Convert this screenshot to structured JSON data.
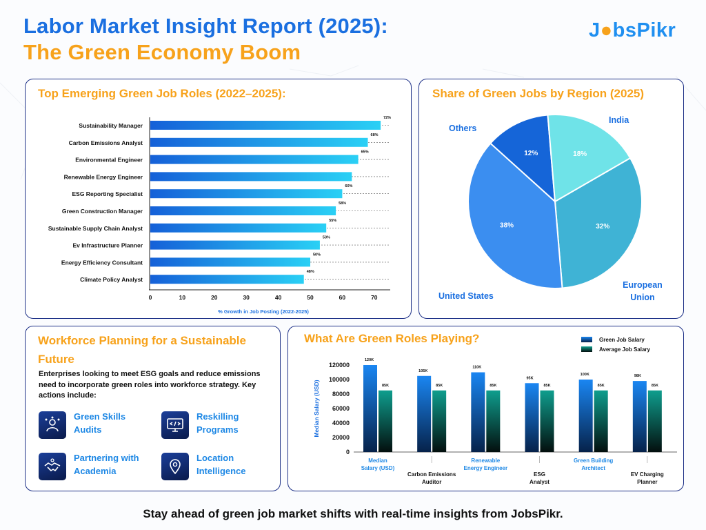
{
  "header": {
    "title_line1": "Labor Market Insight Report (2025):",
    "title_line2": "The Green Economy Boom",
    "logo_part1": "J",
    "logo_part2": "bsPikr"
  },
  "colors": {
    "blue_title": "#1a6fe0",
    "orange_title": "#f7a21b",
    "panel_border": "#1c2f86",
    "bar_gradient_start": "#1560d8",
    "bar_gradient_end": "#2ad0f5"
  },
  "roles_panel": {
    "title": "Top Emerging Green Job Roles (2022–2025):"
  },
  "region_panel": {
    "title": "Share of Green Jobs by Region (2025)"
  },
  "workforce_panel": {
    "title": "Workforce Planning for a Sustainable Future",
    "text": "Enterprises looking to meet ESG goals and reduce emissions need to incorporate green roles into workforce strategy. Key actions include:",
    "actions": [
      {
        "label": "Green Skills Audits",
        "icon": "people-network-icon"
      },
      {
        "label": "Reskilling Programs",
        "icon": "code-monitor-icon"
      },
      {
        "label": "Partnering with Academia",
        "icon": "handshake-icon"
      },
      {
        "label": "Location Intelligence",
        "icon": "location-pin-icon"
      }
    ]
  },
  "salary_panel": {
    "title": "What Are Green Roles Playing?"
  },
  "footer": {
    "text": "Stay ahead of green job market shifts with real-time insights from JobsPikr."
  },
  "chart_data": [
    {
      "type": "bar",
      "orientation": "horizontal",
      "title": "Top Emerging Green Job Roles (2022–2025):",
      "categories": [
        "Sustainability Manager",
        "Carbon Emissions Analyst",
        "Environmental Engineer",
        "Renewable Energy Engineer",
        "ESG Reporting Specialist",
        "Green Construction Manager",
        "Sustainable Supply Chain Analyst",
        "Ev Infrastructure Planner",
        "Energy Efficiency Consultant",
        "Climate Policy Analyst"
      ],
      "values": [
        72,
        68,
        65,
        63,
        60,
        58,
        55,
        53,
        50,
        48
      ],
      "value_labels": [
        "72%",
        "68%",
        "65%",
        "",
        "60%",
        "58%",
        "55%",
        "53%",
        "50%",
        "48%"
      ],
      "xlabel": "% Growth in Job Posting (2022-2025)",
      "xlim": [
        0,
        75
      ],
      "xticks": [
        0,
        10,
        20,
        30,
        40,
        50,
        60,
        70
      ]
    },
    {
      "type": "pie",
      "title": "Share of Green Jobs by Region (2025)",
      "slices": [
        {
          "label": "European Union",
          "value": 32,
          "value_label": "32%",
          "color": "#3fb3d5"
        },
        {
          "label": "United States",
          "value": 38,
          "value_label": "38%",
          "color": "#3b8ef0"
        },
        {
          "label": "Others",
          "value": 12,
          "value_label": "12%",
          "color": "#1565d8"
        },
        {
          "label": "India",
          "value": 18,
          "value_label": "18%",
          "color": "#6fe3e8"
        }
      ]
    },
    {
      "type": "bar",
      "title": "What Are Green Roles Playing?",
      "categories": [
        "Median Salary (USD)",
        "Carbon Emissions Auditor",
        "Renewable Energy Engineer",
        "ESG Analyst",
        "Green Building Architect",
        "EV Charging Planner"
      ],
      "ylabel": "Median Salary (USD)",
      "ylim": [
        0,
        120000
      ],
      "yticks": [
        0,
        20000,
        40000,
        60000,
        80000,
        100000,
        120000
      ],
      "legend_position": "top-right",
      "series": [
        {
          "name": "Green Job Salary",
          "values": [
            120000,
            105000,
            110000,
            95000,
            100000,
            98000
          ],
          "value_labels": [
            "120K",
            "105K",
            "110K",
            "95K",
            "100K",
            "98K"
          ]
        },
        {
          "name": "Average Job Salary",
          "values": [
            85000,
            85000,
            85000,
            85000,
            85000,
            85000
          ],
          "value_labels": [
            "85K",
            "85K",
            "85K",
            "85K",
            "85K",
            "85K"
          ]
        }
      ]
    }
  ]
}
